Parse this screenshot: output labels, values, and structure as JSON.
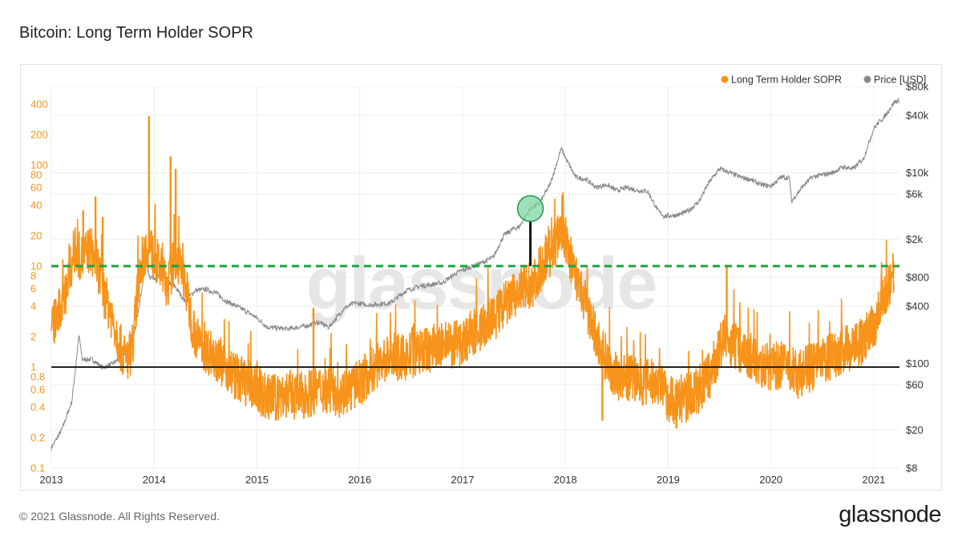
{
  "page": {
    "title": "Bitcoin: Long Term Holder SOPR",
    "footer": "© 2021 Glassnode. All Rights Reserved.",
    "logo": "glassnode",
    "watermark": "glassnode"
  },
  "colors": {
    "sopr": "#f7931a",
    "price": "#888888",
    "green_line": "#1aa33c",
    "black_line": "#222222",
    "highlight_fill": "#7fd6a0",
    "highlight_stroke": "#1a9a4a"
  },
  "chart_data": {
    "type": "line",
    "title": "Bitcoin: Long Term Holder SOPR",
    "xlabel": "",
    "legend": [
      "Long Term Holder SOPR",
      "Price [USD]"
    ],
    "legend_position": "top-right",
    "x_ticks": [
      "2013",
      "2014",
      "2015",
      "2016",
      "2017",
      "2018",
      "2019",
      "2020",
      "2021"
    ],
    "xlim": [
      2013.0,
      2021.25
    ],
    "left_axis": {
      "scale": "log",
      "ylim": [
        0.1,
        600
      ],
      "ticks": [
        {
          "v": 400,
          "label": "400"
        },
        {
          "v": 200,
          "label": "200"
        },
        {
          "v": 100,
          "label": "100"
        },
        {
          "v": 80,
          "label": "80"
        },
        {
          "v": 60,
          "label": "60"
        },
        {
          "v": 40,
          "label": "40"
        },
        {
          "v": 20,
          "label": "20"
        },
        {
          "v": 10,
          "label": "10"
        },
        {
          "v": 8,
          "label": "8"
        },
        {
          "v": 6,
          "label": "6"
        },
        {
          "v": 4,
          "label": "4"
        },
        {
          "v": 2,
          "label": "2"
        },
        {
          "v": 1,
          "label": "1"
        },
        {
          "v": 0.8,
          "label": "0.8"
        },
        {
          "v": 0.6,
          "label": "0.6"
        },
        {
          "v": 0.4,
          "label": "0.4"
        },
        {
          "v": 0.2,
          "label": "0.2"
        },
        {
          "v": 0.1,
          "label": "0.1"
        }
      ]
    },
    "right_axis": {
      "scale": "log",
      "ylim": [
        8,
        80000
      ],
      "ticks": [
        {
          "v": 80000,
          "label": "$80k"
        },
        {
          "v": 40000,
          "label": "$40k"
        },
        {
          "v": 10000,
          "label": "$10k"
        },
        {
          "v": 6000,
          "label": "$6k"
        },
        {
          "v": 2000,
          "label": "$2k"
        },
        {
          "v": 800,
          "label": "$800"
        },
        {
          "v": 400,
          "label": "$400"
        },
        {
          "v": 100,
          "label": "$100"
        },
        {
          "v": 60,
          "label": "$60"
        },
        {
          "v": 20,
          "label": "$20"
        },
        {
          "v": 8,
          "label": "$8"
        }
      ]
    },
    "reference_lines": [
      {
        "name": "green-dashed-threshold",
        "value": 10,
        "style": "dashed"
      },
      {
        "name": "black-baseline",
        "value": 1,
        "style": "solid"
      }
    ],
    "highlight": {
      "x": 2017.66,
      "price": 4200,
      "sopr_from": 10,
      "label": ""
    },
    "series": [
      {
        "name": "Long Term Holder SOPR",
        "axis": "left",
        "x": [
          2013.0,
          2013.08,
          2013.15,
          2013.22,
          2013.3,
          2013.38,
          2013.45,
          2013.52,
          2013.6,
          2013.68,
          2013.72,
          2013.76,
          2013.8,
          2013.86,
          2013.92,
          2013.95,
          2014.0,
          2014.05,
          2014.12,
          2014.18,
          2014.22,
          2014.26,
          2014.3,
          2014.36,
          2014.42,
          2014.5,
          2014.6,
          2014.7,
          2014.8,
          2014.9,
          2015.0,
          2015.1,
          2015.2,
          2015.3,
          2015.4,
          2015.5,
          2015.6,
          2015.7,
          2015.8,
          2015.9,
          2016.0,
          2016.1,
          2016.2,
          2016.3,
          2016.4,
          2016.5,
          2016.6,
          2016.7,
          2016.8,
          2016.9,
          2017.0,
          2017.1,
          2017.2,
          2017.3,
          2017.4,
          2017.5,
          2017.6,
          2017.65,
          2017.7,
          2017.8,
          2017.9,
          2017.95,
          2018.0,
          2018.05,
          2018.1,
          2018.2,
          2018.3,
          2018.4,
          2018.5,
          2018.6,
          2018.7,
          2018.8,
          2018.9,
          2019.0,
          2019.1,
          2019.2,
          2019.3,
          2019.4,
          2019.5,
          2019.55,
          2019.6,
          2019.7,
          2019.8,
          2019.9,
          2020.0,
          2020.1,
          2020.2,
          2020.25,
          2020.3,
          2020.4,
          2020.5,
          2020.6,
          2020.7,
          2020.8,
          2020.9,
          2021.0,
          2021.05,
          2021.1,
          2021.15,
          2021.2
        ],
        "values": [
          2.5,
          3.5,
          6,
          14,
          12,
          15,
          10,
          5,
          3,
          1.5,
          1.2,
          1.3,
          2,
          10,
          14,
          16,
          12,
          10,
          6,
          10,
          12,
          9,
          7,
          3,
          1.8,
          1.5,
          1.3,
          1.0,
          0.8,
          0.7,
          0.6,
          0.5,
          0.5,
          0.55,
          0.5,
          0.55,
          0.6,
          0.6,
          0.55,
          0.6,
          0.7,
          0.9,
          1.1,
          1.3,
          1.2,
          1.3,
          1.4,
          1.5,
          1.6,
          1.6,
          1.8,
          2.2,
          2.5,
          3,
          4,
          5,
          6,
          6.5,
          7,
          12,
          15,
          25,
          18,
          12,
          8,
          4,
          2,
          1.2,
          0.8,
          0.8,
          0.75,
          0.7,
          0.7,
          0.5,
          0.45,
          0.5,
          0.6,
          0.8,
          1.5,
          2.0,
          1.8,
          1.5,
          1.3,
          1.1,
          1.0,
          1.05,
          1.0,
          0.8,
          0.9,
          1.0,
          1.1,
          1.3,
          1.5,
          1.6,
          1.8,
          2.5,
          3.5,
          5,
          7,
          9
        ],
        "spikes": [
          {
            "x": 2013.31,
            "v": 35
          },
          {
            "x": 2013.43,
            "v": 48
          },
          {
            "x": 2013.5,
            "v": 30
          },
          {
            "x": 2013.95,
            "v": 300
          },
          {
            "x": 2014.16,
            "v": 120
          },
          {
            "x": 2014.21,
            "v": 90
          },
          {
            "x": 2015.55,
            "v": 3.8
          },
          {
            "x": 2017.22,
            "v": 2.5
          },
          {
            "x": 2017.97,
            "v": 50
          },
          {
            "x": 2019.57,
            "v": 10
          },
          {
            "x": 2020.42,
            "v": 1.6
          },
          {
            "x": 2021.19,
            "v": 11
          },
          {
            "x": 2018.36,
            "v": 0.3
          },
          {
            "x": 2019.08,
            "v": 0.25
          }
        ]
      },
      {
        "name": "Price [USD]",
        "axis": "right",
        "x": [
          2013.0,
          2013.1,
          2013.2,
          2013.27,
          2013.3,
          2013.4,
          2013.5,
          2013.6,
          2013.7,
          2013.8,
          2013.88,
          2013.92,
          2013.96,
          2014.05,
          2014.2,
          2014.3,
          2014.4,
          2014.5,
          2014.6,
          2014.7,
          2014.8,
          2014.9,
          2015.0,
          2015.1,
          2015.3,
          2015.5,
          2015.6,
          2015.7,
          2015.85,
          2015.95,
          2016.1,
          2016.3,
          2016.45,
          2016.6,
          2016.8,
          2016.95,
          2017.0,
          2017.1,
          2017.2,
          2017.3,
          2017.4,
          2017.5,
          2017.55,
          2017.66,
          2017.75,
          2017.85,
          2017.9,
          2017.96,
          2018.02,
          2018.1,
          2018.2,
          2018.3,
          2018.4,
          2018.5,
          2018.6,
          2018.7,
          2018.8,
          2018.9,
          2018.96,
          2019.1,
          2019.2,
          2019.3,
          2019.4,
          2019.5,
          2019.6,
          2019.7,
          2019.8,
          2019.9,
          2020.0,
          2020.1,
          2020.18,
          2020.2,
          2020.3,
          2020.4,
          2020.5,
          2020.6,
          2020.7,
          2020.8,
          2020.9,
          2021.0,
          2021.05,
          2021.1,
          2021.2,
          2021.25
        ],
        "values": [
          13,
          20,
          40,
          200,
          110,
          110,
          90,
          100,
          120,
          180,
          600,
          1100,
          800,
          800,
          650,
          450,
          580,
          600,
          550,
          450,
          400,
          350,
          300,
          240,
          230,
          250,
          270,
          240,
          380,
          430,
          410,
          430,
          580,
          650,
          700,
          900,
          950,
          1050,
          1150,
          1300,
          2200,
          2600,
          2700,
          4200,
          4800,
          7500,
          11000,
          18000,
          13000,
          9000,
          8500,
          7000,
          7500,
          6500,
          7000,
          6500,
          6400,
          4000,
          3500,
          3600,
          4000,
          5000,
          8000,
          11000,
          10000,
          9000,
          8500,
          7500,
          7200,
          9000,
          8800,
          5000,
          7000,
          9000,
          9500,
          10000,
          11500,
          11000,
          14000,
          29000,
          34000,
          38000,
          55000,
          57000
        ]
      }
    ]
  }
}
